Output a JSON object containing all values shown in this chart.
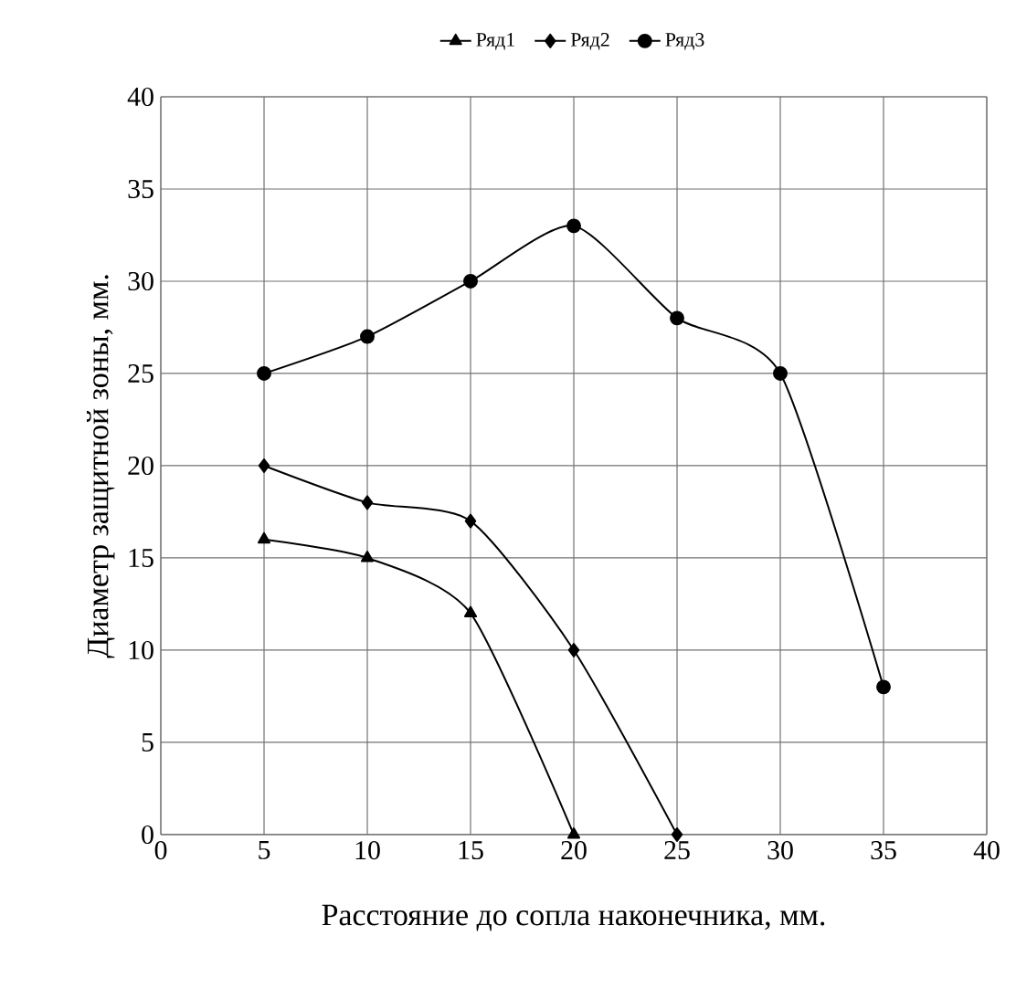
{
  "chart_data": {
    "type": "line",
    "xlabel": "Расстояние до сопла наконечника, мм.",
    "ylabel": "Диаметр защитной зоны, мм.",
    "xlim": [
      0,
      40
    ],
    "ylim": [
      0,
      40
    ],
    "xticks": [
      0,
      5,
      10,
      15,
      20,
      25,
      30,
      35,
      40
    ],
    "yticks": [
      0,
      5,
      10,
      15,
      20,
      25,
      30,
      35,
      40
    ],
    "grid": true,
    "legend": "top",
    "line_style": "solid",
    "series": [
      {
        "name": "Ряд1",
        "color": "#000000",
        "marker": "triangle",
        "x": [
          5,
          10,
          15,
          20
        ],
        "values": [
          16,
          15,
          12,
          0
        ]
      },
      {
        "name": "Ряд2",
        "color": "#000000",
        "marker": "diamond",
        "x": [
          5,
          10,
          15,
          20,
          25
        ],
        "values": [
          20,
          18,
          17,
          10,
          0
        ]
      },
      {
        "name": "Ряд3",
        "color": "#000000",
        "marker": "circle",
        "x": [
          5,
          10,
          15,
          20,
          25,
          30,
          35
        ],
        "values": [
          25,
          27,
          30,
          33,
          28,
          25,
          8
        ]
      }
    ]
  }
}
